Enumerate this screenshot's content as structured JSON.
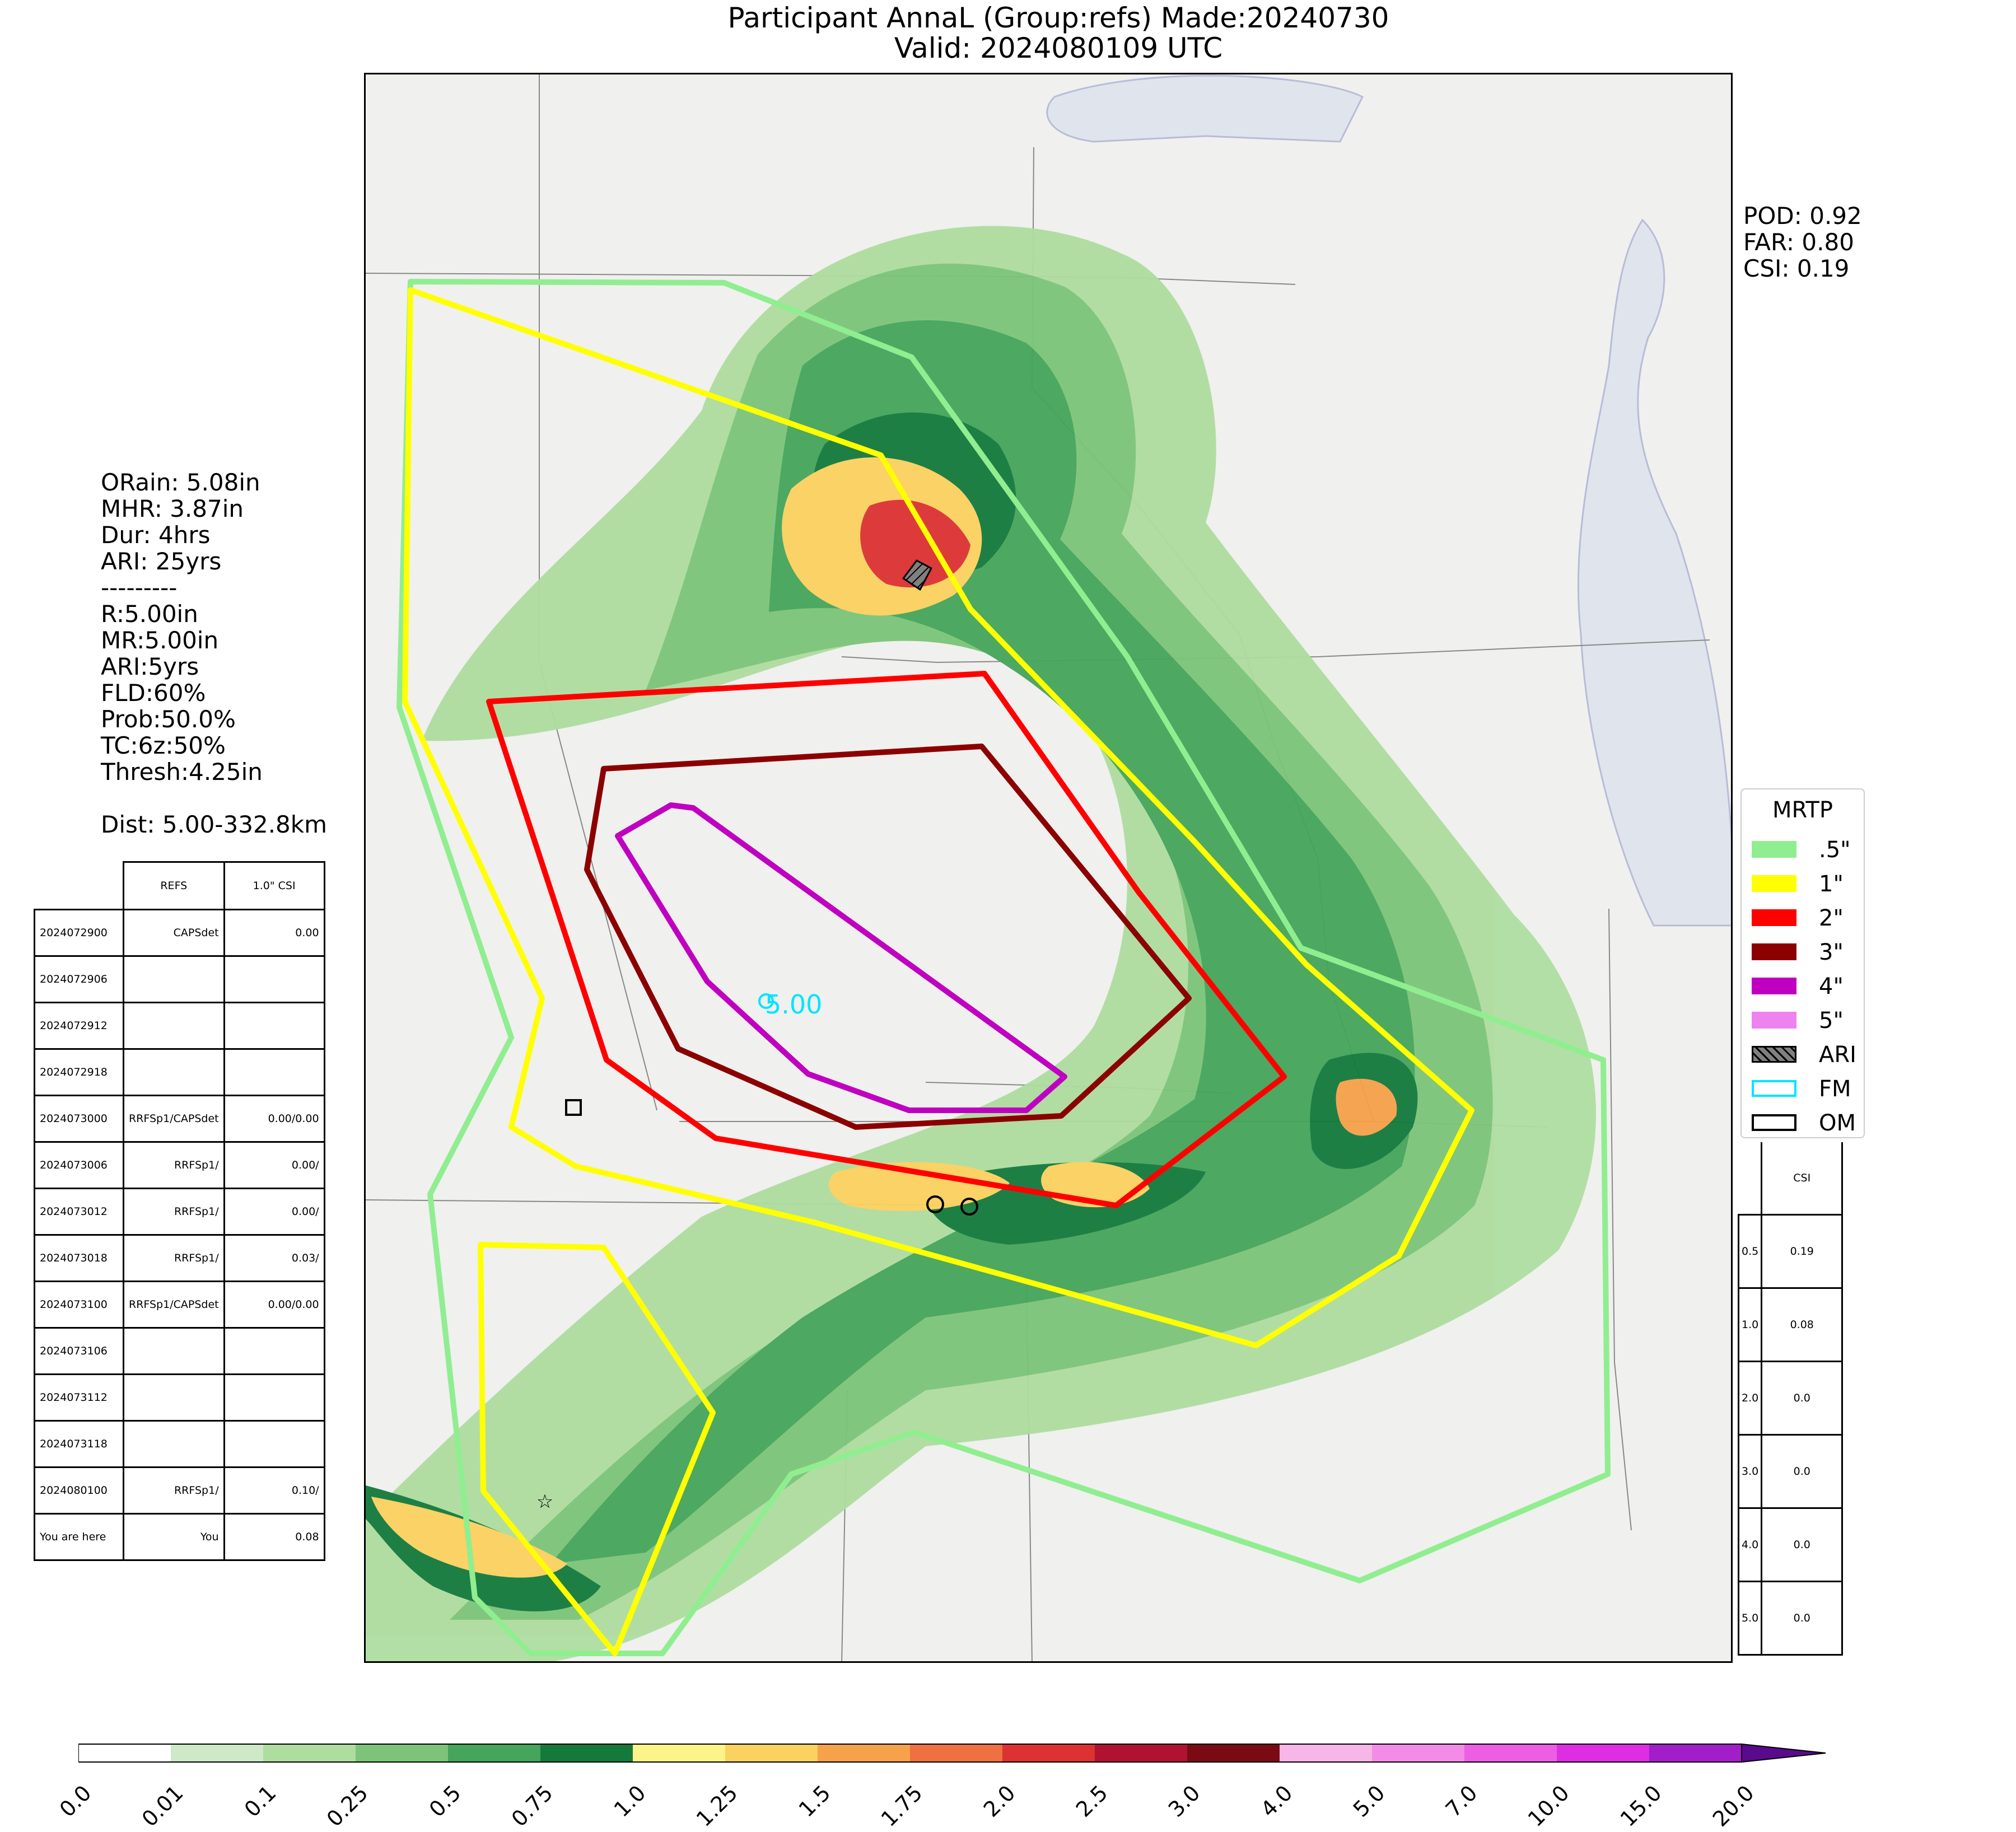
{
  "title_line1": "Participant AnnaL (Group:refs) Made:20240730",
  "title_line2": "Valid: 2024080109 UTC",
  "left_stats": "ORain: 5.08in\nMHR: 3.87in\nDur: 4hrs\nARI: 25yrs\n---------\nR:5.00in\nMR:5.00in\nARI:5yrs\nFLD:60%\nProb:50.0%\nTC:6z:50%\nThresh:4.25in\n\nDist: 5.00-332.8km",
  "right_stats": "POD: 0.92\nFAR: 0.80\nCSI: 0.19",
  "fm_label": "5.00",
  "run_table": {
    "headers": [
      "",
      "REFS",
      "1.0\" CSI"
    ],
    "rows": [
      [
        "2024072900",
        "CAPSdet",
        "0.00"
      ],
      [
        "2024072906",
        "",
        ""
      ],
      [
        "2024072912",
        "",
        ""
      ],
      [
        "2024072918",
        "",
        ""
      ],
      [
        "2024073000",
        "RRFSp1/CAPSdet",
        "0.00/0.00"
      ],
      [
        "2024073006",
        "RRFSp1/",
        "0.00/"
      ],
      [
        "2024073012",
        "RRFSp1/",
        "0.00/"
      ],
      [
        "2024073018",
        "RRFSp1/",
        "0.03/"
      ],
      [
        "2024073100",
        "RRFSp1/CAPSdet",
        "0.00/0.00"
      ],
      [
        "2024073106",
        "",
        ""
      ],
      [
        "2024073112",
        "",
        ""
      ],
      [
        "2024073118",
        "",
        ""
      ],
      [
        "2024080100",
        "RRFSp1/",
        "0.10/"
      ],
      [
        "You are here",
        "You",
        "0.08"
      ]
    ]
  },
  "csi_table": {
    "header": "CSI",
    "rows": [
      [
        "0.5",
        "0.19"
      ],
      [
        "1.0",
        "0.08"
      ],
      [
        "2.0",
        "0.0"
      ],
      [
        "3.0",
        "0.0"
      ],
      [
        "4.0",
        "0.0"
      ],
      [
        "5.0",
        "0.0"
      ]
    ]
  },
  "legend": {
    "title": "MRTP",
    "items": [
      {
        "label": ".5\"",
        "color": "#90ee90",
        "style": "fill"
      },
      {
        "label": "1\"",
        "color": "#ffff00",
        "style": "fill"
      },
      {
        "label": "2\"",
        "color": "#ff0000",
        "style": "fill"
      },
      {
        "label": "3\"",
        "color": "#8b0000",
        "style": "fill"
      },
      {
        "label": "4\"",
        "color": "#c000c0",
        "style": "fill"
      },
      {
        "label": "5\"",
        "color": "#ee82ee",
        "style": "fill"
      },
      {
        "label": "ARI",
        "color": "#808080",
        "style": "hatch"
      },
      {
        "label": "FM",
        "color": "#00e5ff",
        "style": "outline"
      },
      {
        "label": "OM",
        "color": "#000000",
        "style": "outline"
      }
    ]
  },
  "colorbar": {
    "ticks": [
      "0.0",
      "0.01",
      "0.1",
      "0.25",
      "0.5",
      "0.75",
      "1.0",
      "1.25",
      "1.5",
      "1.75",
      "2.0",
      "2.5",
      "3.0",
      "4.0",
      "5.0",
      "7.0",
      "10.0",
      "15.0",
      "20.0"
    ],
    "colors": [
      "#ffffff",
      "#cfe8c8",
      "#aedda0",
      "#7cc47a",
      "#45a55a",
      "#137a3c",
      "#fdf489",
      "#fbd15f",
      "#f6a24a",
      "#ef7040",
      "#dc3232",
      "#b01232",
      "#7a0a14",
      "#f7b6e8",
      "#f28ce6",
      "#ec5fe2",
      "#de2ee4",
      "#a21ec8"
    ]
  }
}
